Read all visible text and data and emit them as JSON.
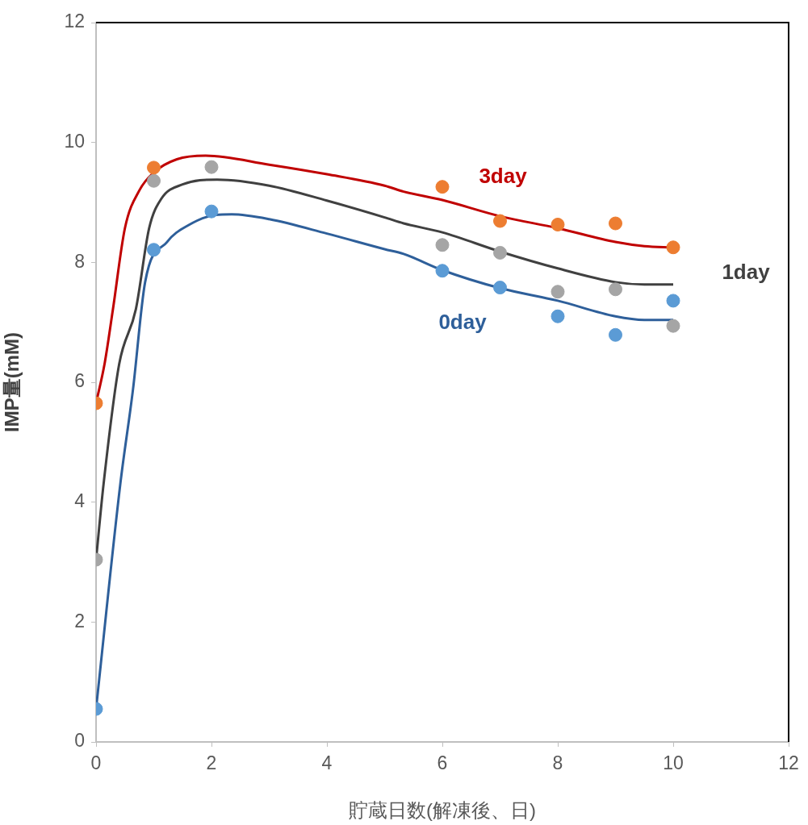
{
  "chart_data": {
    "type": "scatter",
    "xlabel": "貯蔵日数(解凍後、日)",
    "ylabel": "IMP量(mM)",
    "xlim": [
      0,
      12
    ],
    "xticks": [
      0,
      2,
      4,
      6,
      8,
      10,
      12
    ],
    "ylim": [
      0,
      12
    ],
    "yticks": [
      0,
      2,
      4,
      6,
      8,
      10,
      12
    ],
    "grid": false,
    "legend": false,
    "marker": "circle",
    "series": [
      {
        "color": "#ed7d31",
        "x": [
          0,
          1,
          6,
          7,
          8,
          9,
          10
        ],
        "values": [
          5.65,
          9.58,
          9.26,
          8.69,
          8.63,
          8.65,
          8.25
        ]
      },
      {
        "color": "#a5a5a5",
        "x": [
          0,
          1,
          2,
          6,
          7,
          8,
          9,
          10
        ],
        "values": [
          3.04,
          9.36,
          9.59,
          8.29,
          8.16,
          7.51,
          7.55,
          6.94
        ]
      },
      {
        "color": "#5b9bd5",
        "x": [
          0,
          1,
          2,
          6,
          7,
          8,
          9,
          10
        ],
        "values": [
          0.55,
          8.21,
          8.85,
          7.86,
          7.58,
          7.1,
          6.79,
          7.36
        ]
      },
      {
        "type": "line",
        "name": "3day",
        "color": "#c00000",
        "marker": "none",
        "x": [
          0,
          0.15,
          0.29,
          0.5,
          0.75,
          1,
          1.4,
          1.9,
          3,
          4,
          5,
          5.33,
          6,
          7,
          8,
          9,
          9.5,
          10
        ],
        "values": [
          5.65,
          6.32,
          7.2,
          8.57,
          9.2,
          9.5,
          9.72,
          9.78,
          9.63,
          9.47,
          9.28,
          9.18,
          9.04,
          8.77,
          8.57,
          8.34,
          8.27,
          8.25
        ]
      },
      {
        "type": "line",
        "name": "1day",
        "color": "#404040",
        "marker": "none",
        "x": [
          0,
          0.13,
          0.4,
          0.69,
          0.92,
          1.13,
          1.5,
          2.1,
          3,
          4,
          5,
          5.33,
          6,
          7,
          8,
          9,
          9.5,
          10
        ],
        "values": [
          3.04,
          4.3,
          6.3,
          7.22,
          8.57,
          9.06,
          9.3,
          9.38,
          9.28,
          9.03,
          8.75,
          8.65,
          8.5,
          8.18,
          7.9,
          7.67,
          7.63,
          7.63
        ]
      },
      {
        "type": "line",
        "name": "0day",
        "color": "#2e5f9a",
        "marker": "none",
        "x": [
          0,
          0.42,
          0.64,
          0.85,
          1.23,
          1.6,
          2.07,
          2.35,
          3,
          4,
          5,
          5.33,
          6,
          7,
          8,
          9,
          9.5,
          10
        ],
        "values": [
          0.55,
          4.3,
          5.88,
          7.67,
          8.34,
          8.62,
          8.79,
          8.8,
          8.72,
          8.48,
          8.22,
          8.14,
          7.87,
          7.57,
          7.36,
          7.1,
          7.04,
          7.04
        ]
      }
    ]
  }
}
